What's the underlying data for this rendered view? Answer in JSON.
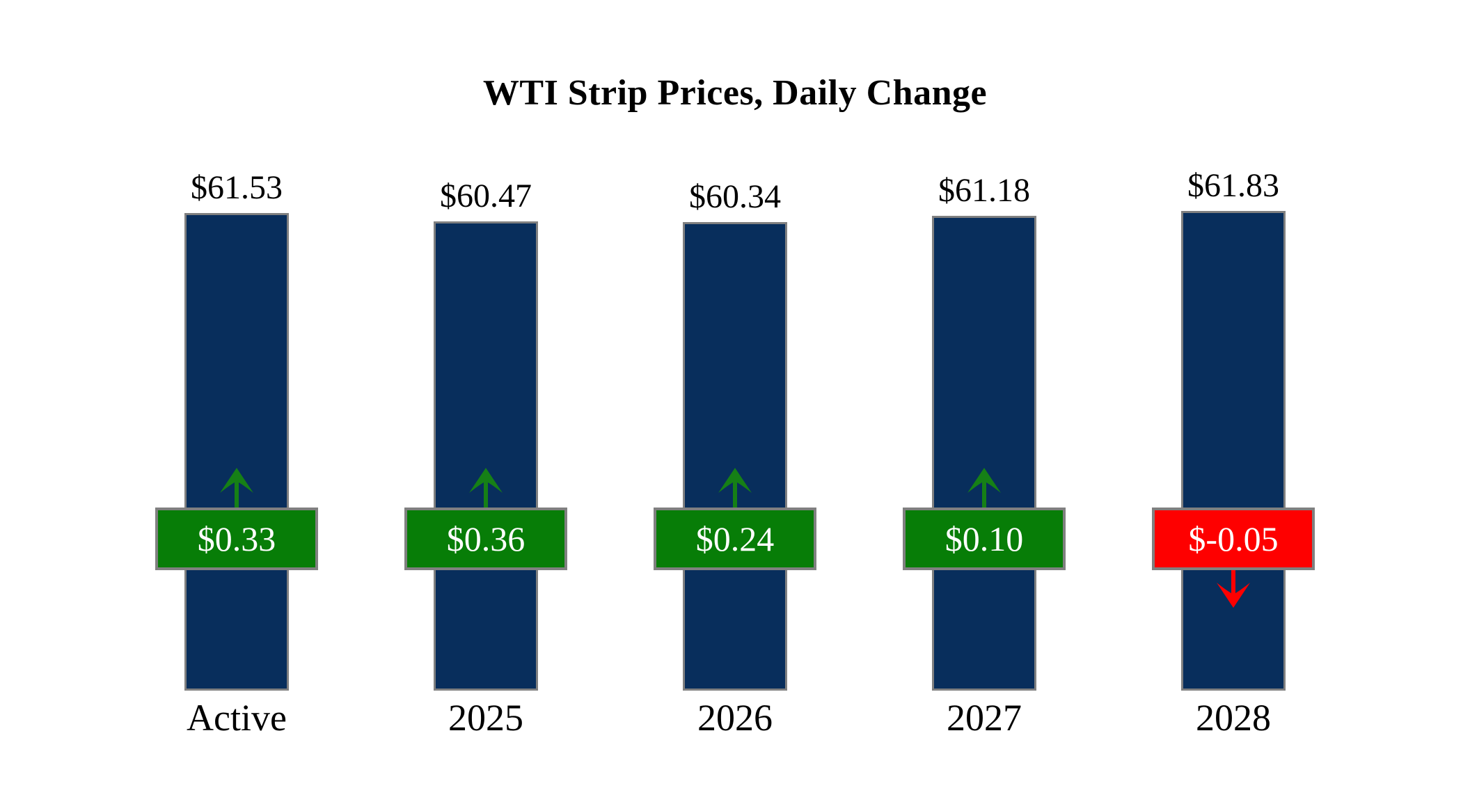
{
  "chart_data": {
    "type": "bar",
    "title": "WTI Strip Prices, Daily Change",
    "xlabel": "",
    "ylabel": "",
    "ylim": [
      0,
      70
    ],
    "grid": false,
    "legend": "none",
    "axes_hidden": true,
    "categories": [
      "Active",
      "2025",
      "2026",
      "2027",
      "2028"
    ],
    "values": [
      61.53,
      60.47,
      60.34,
      61.18,
      61.83
    ],
    "daily_changes": [
      0.33,
      0.36,
      0.24,
      0.1,
      -0.05
    ],
    "bars": [
      {
        "category": "Active",
        "value": 61.53,
        "price_label": "$61.53",
        "change": 0.33,
        "change_label": "$0.33",
        "direction": "up"
      },
      {
        "category": "2025",
        "value": 60.47,
        "price_label": "$60.47",
        "change": 0.36,
        "change_label": "$0.36",
        "direction": "up"
      },
      {
        "category": "2026",
        "value": 60.34,
        "price_label": "$60.34",
        "change": 0.24,
        "change_label": "$0.24",
        "direction": "up"
      },
      {
        "category": "2027",
        "value": 61.18,
        "price_label": "$61.18",
        "change": 0.1,
        "change_label": "$0.10",
        "direction": "up"
      },
      {
        "category": "2028",
        "value": 61.83,
        "price_label": "$61.83",
        "change": -0.05,
        "change_label": "$-0.05",
        "direction": "down"
      }
    ],
    "colors": {
      "bar": "#082e5c",
      "positive_badge": "#077d07",
      "negative_badge": "#fe0000",
      "arrow_up": "#168016",
      "arrow_down": "#fe0000",
      "border_gray": "#808080",
      "badge_text": "#ffffff",
      "label_text": "#000000",
      "background": "#ffffff"
    }
  }
}
